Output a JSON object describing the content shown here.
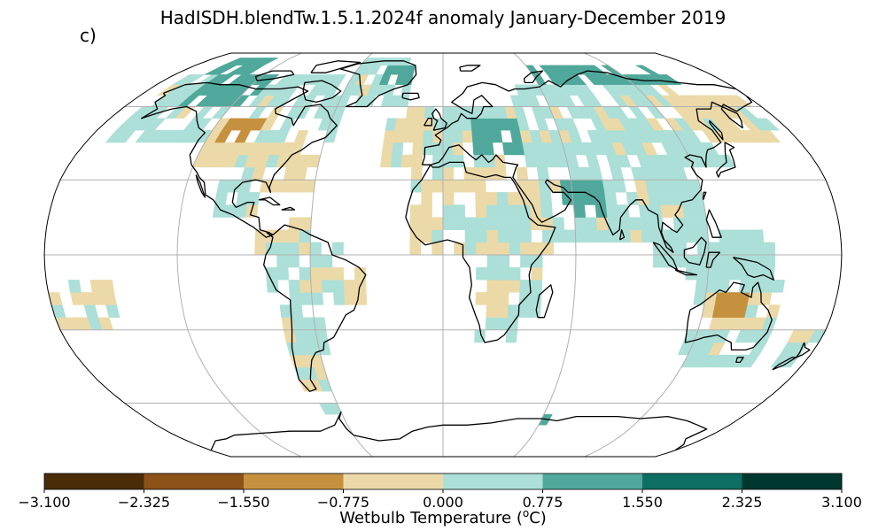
{
  "title": "HadISDH.blendTw.1.5.1.2024f anomaly January-December 2019",
  "panel_label": "c)",
  "colorbar": {
    "label": "Wetbulb Temperature (",
    "label_sup": "o",
    "label_end": "C)",
    "ticks": [
      "−3.100",
      "−2.325",
      "−1.550",
      "−0.775",
      "0.000",
      "0.775",
      "1.550",
      "2.325",
      "3.100"
    ],
    "tick_values": [
      -3.1,
      -2.325,
      -1.55,
      -0.775,
      0.0,
      0.775,
      1.55,
      2.325,
      3.1
    ],
    "colors": [
      "#4a2c09",
      "#8c5217",
      "#c6913f",
      "#ecd9a8",
      "#abdfd7",
      "#4fa89b",
      "#0d6e63",
      "#00382f"
    ]
  },
  "map": {
    "projection": "Robinson",
    "gridlines": true,
    "coastlines": true,
    "legend_classes": {
      "strong_dry": -1.2,
      "dry": -0.4,
      "moist": 0.4,
      "strong_moist": 1.2,
      "very_strong_moist": 1.9
    }
  }
}
